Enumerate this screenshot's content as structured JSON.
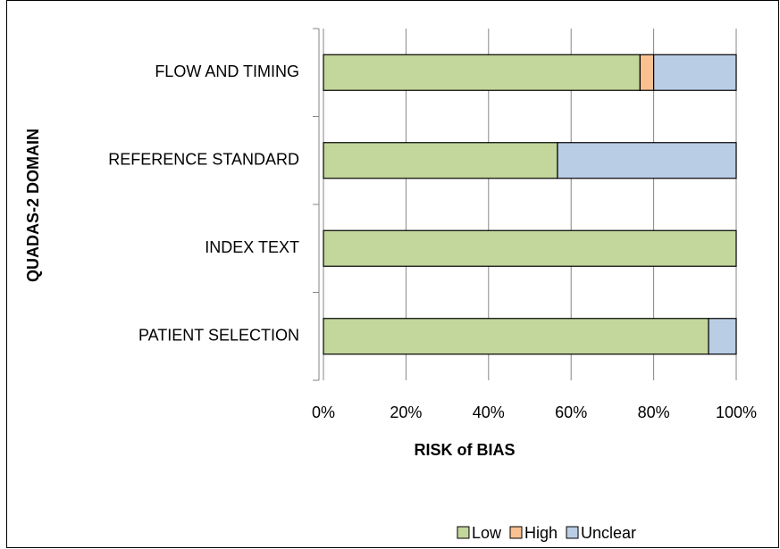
{
  "chart_data": {
    "type": "stacked_bar_horizontal",
    "x_label": "RISK of BIAS",
    "y_label": "QUADAS-2  DOMAIN",
    "categories": [
      "PATIENT SELECTION",
      "INDEX TEXT",
      "REFERENCE STANDARD",
      "FLOW AND TIMING"
    ],
    "series": [
      {
        "name": "Low",
        "color": "#c3d69b",
        "values": [
          93.3,
          100,
          56.7,
          76.7
        ]
      },
      {
        "name": "High",
        "color": "#fac090",
        "values": [
          0,
          0,
          0,
          3.3
        ]
      },
      {
        "name": "Unclear",
        "color": "#b9cde5",
        "values": [
          6.7,
          0,
          43.3,
          20
        ]
      }
    ],
    "xlim": [
      0,
      100
    ],
    "xticks": [
      {
        "value": 0,
        "label": "0%"
      },
      {
        "value": 20,
        "label": "20%"
      },
      {
        "value": 40,
        "label": "40%"
      },
      {
        "value": 60,
        "label": "60%"
      },
      {
        "value": 80,
        "label": "80%"
      },
      {
        "value": 100,
        "label": "100%"
      }
    ],
    "grid": true,
    "legend": "bottom"
  }
}
